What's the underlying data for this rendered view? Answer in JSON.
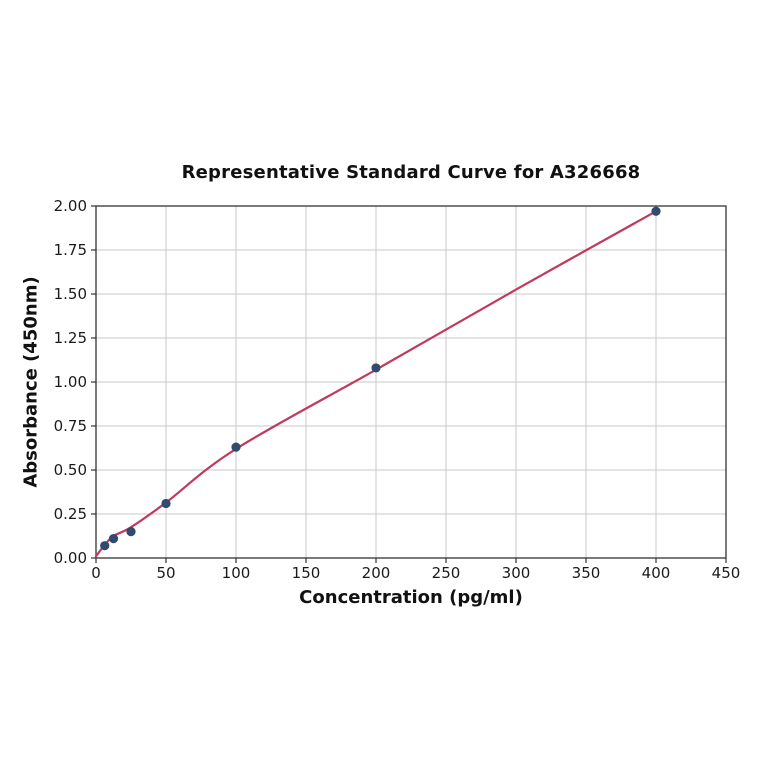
{
  "chart_data": {
    "type": "scatter",
    "title": "Representative Standard Curve for A326668",
    "xlabel": "Concentration (pg/ml)",
    "ylabel": "Absorbance (450nm)",
    "xlim": [
      0,
      450
    ],
    "ylim": [
      0,
      2.0
    ],
    "grid": true,
    "legend": "none",
    "x_ticks": [
      0,
      50,
      100,
      150,
      200,
      250,
      300,
      350,
      400,
      450
    ],
    "x_tick_labels": [
      "0",
      "50",
      "100",
      "150",
      "200",
      "250",
      "300",
      "350",
      "400",
      "450"
    ],
    "y_ticks": [
      0,
      0.25,
      0.5,
      0.75,
      1.0,
      1.25,
      1.5,
      1.75,
      2.0
    ],
    "y_tick_labels": [
      "0.00",
      "0.25",
      "0.50",
      "0.75",
      "1.00",
      "1.25",
      "1.50",
      "1.75",
      "2.00"
    ],
    "series": [
      {
        "name": "standard-points",
        "kind": "scatter",
        "x": [
          6.25,
          12.5,
          25,
          50,
          100,
          200,
          400
        ],
        "y": [
          0.07,
          0.11,
          0.15,
          0.31,
          0.63,
          1.08,
          1.97
        ]
      },
      {
        "name": "fitted-curve",
        "kind": "smooth-line",
        "x": [
          0,
          6.25,
          12.5,
          25,
          50,
          100,
          200,
          300,
          400
        ],
        "y": [
          0.01,
          0.075,
          0.125,
          0.175,
          0.315,
          0.62,
          1.07,
          1.525,
          1.97
        ]
      }
    ],
    "colors": {
      "marker": "#2f4b6e",
      "line": "#c03a5e",
      "grid": "#c9c9c9",
      "spine": "#333333",
      "tick": "#333333",
      "text": "#111111",
      "background": "#ffffff"
    },
    "marker_radius": 4.6,
    "line_width": 2.2
  }
}
